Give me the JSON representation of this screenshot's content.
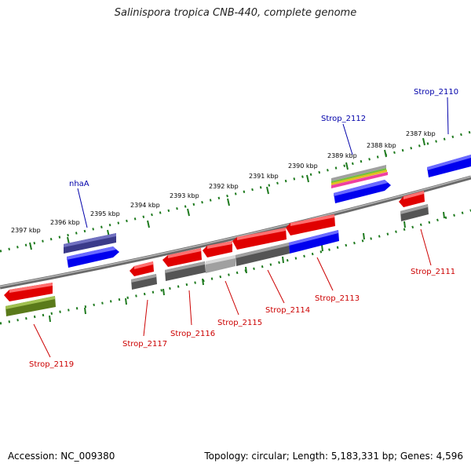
{
  "title": "Salinispora tropica CNB-440, complete genome",
  "footer": {
    "accession": "Accession: NC_009380",
    "topology": "Topology: circular; Length: 5,183,331 bp; Genes: 4,596"
  },
  "colors": {
    "backbone": "#8a8a8a",
    "tick": "#1e7a1e",
    "forward": "#e00000",
    "reverse": "#1010e0",
    "pseudo": "#5a5a5a",
    "label_red": "#cc0000",
    "label_blue": "#0000aa"
  },
  "scale_labels": [
    "2387 kbp",
    "2388 kbp",
    "2389 kbp",
    "2390 kbp",
    "2391 kbp",
    "2392 kbp",
    "2393 kbp",
    "2394 kbp",
    "2395 kbp",
    "2396 kbp",
    "2397 kbp"
  ],
  "gene_labels_top": [
    "Strop_2110",
    "Strop_2112",
    "nhaA"
  ],
  "gene_labels_bottom": [
    "Strop_2111",
    "Strop_2113",
    "Strop_2114",
    "Strop_2115",
    "Strop_2116",
    "Strop_2117",
    "Strop_2119"
  ]
}
